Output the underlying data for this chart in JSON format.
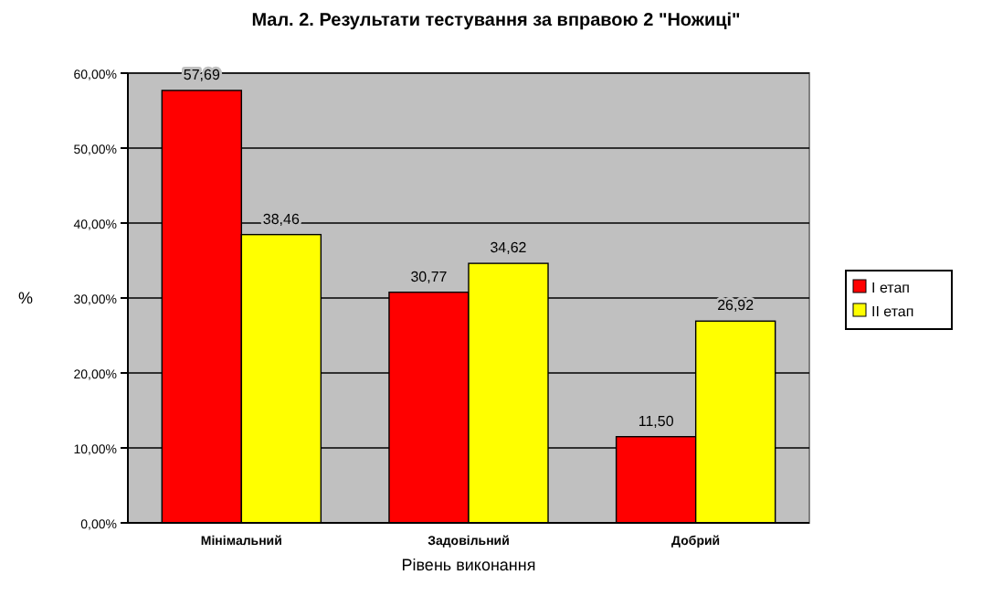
{
  "chart_data": {
    "type": "bar",
    "title": "Мал. 2. Результати тестування за вправою 2 \"Ножиці\"",
    "xlabel": "Рівень виконання",
    "ylabel": "%",
    "categories": [
      "Мінімальний",
      "Задовільний",
      "Добрий"
    ],
    "series": [
      {
        "name": "І етап",
        "color": "#ff0000",
        "values": [
          57.69,
          30.77,
          11.5
        ],
        "value_labels": [
          "57,69",
          "30,77",
          "11,50"
        ]
      },
      {
        "name": "ІІ етап",
        "color": "#ffff00",
        "values": [
          38.46,
          34.62,
          26.92
        ],
        "value_labels": [
          "38,46",
          "34,62",
          "26,92"
        ]
      }
    ],
    "ylim": [
      0,
      60
    ],
    "yticks": [
      {
        "value": 0,
        "label": "0,00%"
      },
      {
        "value": 10,
        "label": "10,00%"
      },
      {
        "value": 20,
        "label": "20,00%"
      },
      {
        "value": 30,
        "label": "30,00%"
      },
      {
        "value": 40,
        "label": "40,00%"
      },
      {
        "value": 50,
        "label": "50,00%"
      },
      {
        "value": 60,
        "label": "60,00%"
      }
    ],
    "grid": "y",
    "legend": "right"
  }
}
